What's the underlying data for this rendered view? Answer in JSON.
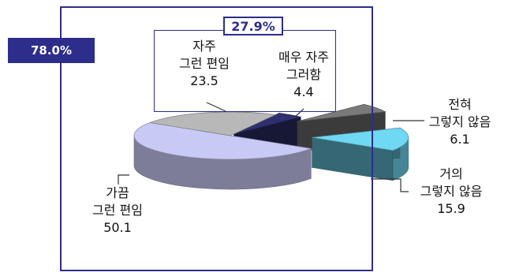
{
  "frame_tags": {
    "outer_percent": "78.0%",
    "top_group_percent": "27.9%"
  },
  "chart_data": {
    "type": "pie",
    "title": "",
    "slices": [
      {
        "label": "매우 자주 그러함",
        "line1": "매우 자주",
        "line2": "그러함",
        "value": 4.4,
        "display": "4.4",
        "color": "#2f2f70"
      },
      {
        "label": "전혀 그렇지 않음",
        "line1": "전혀",
        "line2": "그렇지 않음",
        "value": 6.1,
        "display": "6.1",
        "color": "#7a7a7a"
      },
      {
        "label": "거의 그렇지 않음",
        "line1": "거의",
        "line2": "그렇지 않음",
        "value": 15.9,
        "display": "15.9",
        "color": "#6fd8f2"
      },
      {
        "label": "가끔 그런 편임",
        "line1": "가끔",
        "line2": "그런 편임",
        "value": 50.1,
        "display": "50.1",
        "color": "#c9c9f6"
      },
      {
        "label": "자주 그런 편임",
        "line1": "자주",
        "line2": "그런 편임",
        "value": 23.5,
        "display": "23.5",
        "color": "#b8b8b8"
      }
    ],
    "style": "3d-exploded-pie"
  }
}
